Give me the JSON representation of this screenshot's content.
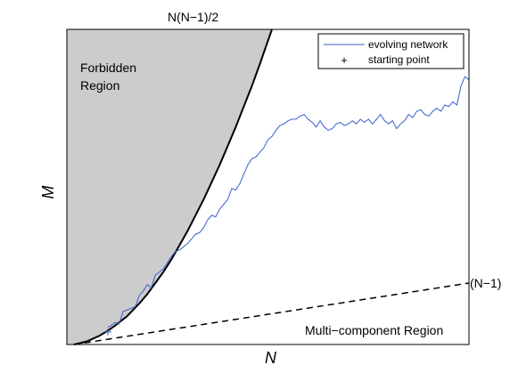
{
  "chart_data": {
    "type": "line",
    "title": "",
    "xlabel": "N",
    "ylabel": "M",
    "xlim": [
      0,
      100
    ],
    "ylim": [
      0,
      100
    ],
    "grid": false,
    "legend_position": "top-right",
    "ticks_shown": false,
    "series": [
      {
        "name": "evolving network",
        "color": "#3a5fcd",
        "x": [
          10.2,
          11,
          12,
          13,
          14,
          15,
          16,
          17,
          18,
          19,
          20,
          21,
          22,
          23,
          24,
          25,
          26,
          27,
          28,
          29,
          30,
          31,
          32,
          33,
          34,
          35,
          36,
          37,
          38,
          39,
          40,
          41,
          42,
          43,
          44,
          45,
          46,
          47,
          48,
          49,
          50,
          51,
          52,
          53,
          54,
          55,
          56,
          57,
          58,
          59,
          60,
          61,
          62,
          63,
          64,
          65,
          66,
          67,
          68,
          69,
          70,
          71,
          72,
          73,
          74,
          75,
          76,
          77,
          78,
          79,
          80,
          81,
          82,
          83,
          84,
          85,
          86,
          87,
          88,
          89,
          90,
          91,
          92,
          93,
          94,
          95,
          96,
          97,
          98,
          99,
          100
        ],
        "y": [
          5.5,
          6,
          7,
          6.5,
          10.5,
          11,
          11.5,
          12,
          15.5,
          17,
          19,
          18,
          22,
          23,
          24,
          26,
          28,
          29.5,
          30,
          31,
          32,
          33.5,
          35,
          35.5,
          37,
          39.5,
          41,
          40.5,
          43,
          44.5,
          46,
          49.5,
          49,
          51,
          54,
          57,
          59,
          59.5,
          61,
          62.5,
          65,
          66,
          68,
          69.5,
          70,
          71,
          71.5,
          71.5,
          72.5,
          73,
          71.5,
          70.5,
          69,
          71,
          69,
          68,
          68.5,
          70,
          70.5,
          69.5,
          70,
          71,
          70,
          71.5,
          70.5,
          71.5,
          70,
          71.5,
          73,
          71,
          70,
          71,
          68.5,
          70,
          71,
          73,
          72,
          74,
          74.5,
          73,
          72.5,
          74,
          75,
          74,
          76,
          75.5,
          77,
          76,
          82,
          85,
          84
        ]
      }
    ],
    "markers": [
      {
        "name": "starting point",
        "x": 10.2,
        "y": 4,
        "symbol": "+"
      }
    ],
    "boundaries": [
      {
        "label": "N(N−1)/2",
        "style": "solid",
        "x": [
          1.8,
          5,
          8,
          10,
          12,
          15,
          18,
          20,
          22,
          24,
          26,
          28,
          30,
          32,
          34,
          36,
          38,
          40,
          42,
          44,
          46,
          48,
          49.5,
          51
        ],
        "y": [
          0,
          1,
          2.7,
          4.2,
          6,
          9,
          13,
          16,
          19.5,
          23,
          27,
          31.5,
          36,
          41,
          46,
          51.5,
          57,
          63,
          69,
          75.5,
          82,
          89,
          94.5,
          100
        ]
      },
      {
        "label": "(N−1)",
        "style": "dashed",
        "x": [
          1.8,
          100
        ],
        "y": [
          0,
          19.5
        ]
      }
    ],
    "regions": [
      {
        "label_lines": [
          "Forbidden",
          "Region"
        ],
        "color": "#cccccc"
      },
      {
        "label_lines": [
          "Multi−component Region"
        ]
      }
    ]
  }
}
